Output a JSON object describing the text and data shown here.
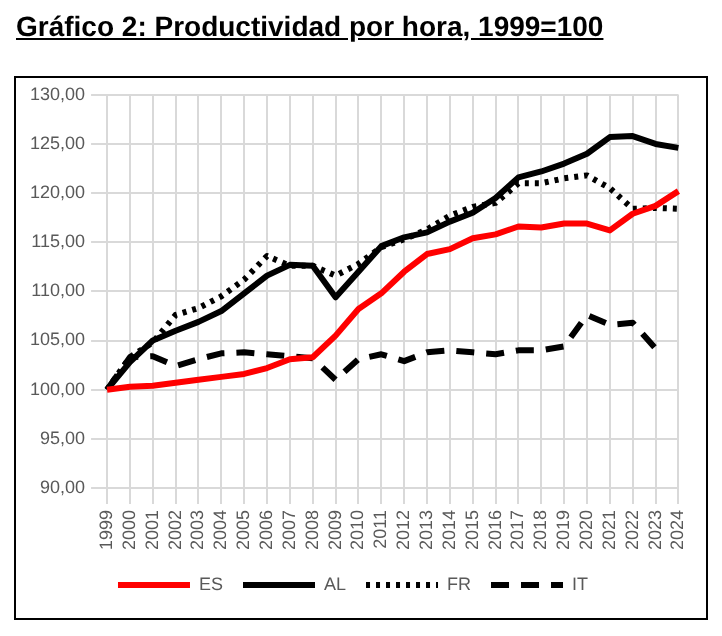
{
  "chart_data": {
    "type": "line",
    "title": "Gráfico 2: Productividad por hora, 1999=100",
    "categories": [
      "1999",
      "2000",
      "2001",
      "2002",
      "2003",
      "2004",
      "2005",
      "2006",
      "2007",
      "2008",
      "2009",
      "2010",
      "2011",
      "2012",
      "2013",
      "2014",
      "2015",
      "2016",
      "2017",
      "2018",
      "2019",
      "2020",
      "2021",
      "2022",
      "2023",
      "2024"
    ],
    "series": [
      {
        "name": "ES",
        "color": "#ff0000",
        "line_style": "solid",
        "values": [
          100,
          100.3,
          100.4,
          100.7,
          101,
          101.3,
          101.6,
          102.2,
          103.1,
          103.3,
          105.5,
          108.2,
          109.8,
          112,
          113.8,
          114.3,
          115.4,
          115.8,
          116.6,
          116.5,
          116.9,
          116.9,
          116.2,
          117.9,
          118.7,
          120.2
        ]
      },
      {
        "name": "AL",
        "color": "#000000",
        "line_style": "solid",
        "values": [
          100,
          102.8,
          105,
          106,
          106.9,
          108,
          109.8,
          111.6,
          112.7,
          112.6,
          109.4,
          112,
          114.6,
          115.5,
          116,
          117.1,
          118,
          119.5,
          121.6,
          122.2,
          123,
          124,
          125.7,
          125.8,
          125,
          124.6
        ]
      },
      {
        "name": "FR",
        "color": "#000000",
        "line_style": "dotted",
        "values": [
          100,
          103.3,
          104.8,
          107.6,
          108.3,
          109.5,
          111.2,
          113.6,
          112.6,
          112.6,
          111.6,
          112.8,
          114.5,
          115.3,
          116.3,
          117.7,
          118.6,
          119,
          121,
          121,
          121.5,
          121.8,
          120.5,
          118.4,
          118.5,
          118.4
        ]
      },
      {
        "name": "IT",
        "color": "#000000",
        "line_style": "dashed",
        "values": [
          100,
          103.3,
          103.4,
          102.4,
          103.1,
          103.7,
          103.8,
          103.6,
          103.4,
          103.2,
          101,
          103.1,
          103.6,
          102.9,
          103.8,
          104,
          103.8,
          103.6,
          104,
          104,
          104.4,
          107.6,
          106.6,
          106.8,
          104.2,
          null
        ]
      }
    ],
    "ylim": [
      90,
      130
    ],
    "yticks": [
      {
        "value": 90,
        "label": "90,00"
      },
      {
        "value": 95,
        "label": "95,00"
      },
      {
        "value": 100,
        "label": "100,00"
      },
      {
        "value": 105,
        "label": "105,00"
      },
      {
        "value": 110,
        "label": "110,00"
      },
      {
        "value": 115,
        "label": "115,00"
      },
      {
        "value": 120,
        "label": "120,00"
      },
      {
        "value": 125,
        "label": "125,00"
      },
      {
        "value": 130,
        "label": "130,00"
      }
    ],
    "grid": true,
    "legend": "bottom",
    "marker": "none"
  }
}
